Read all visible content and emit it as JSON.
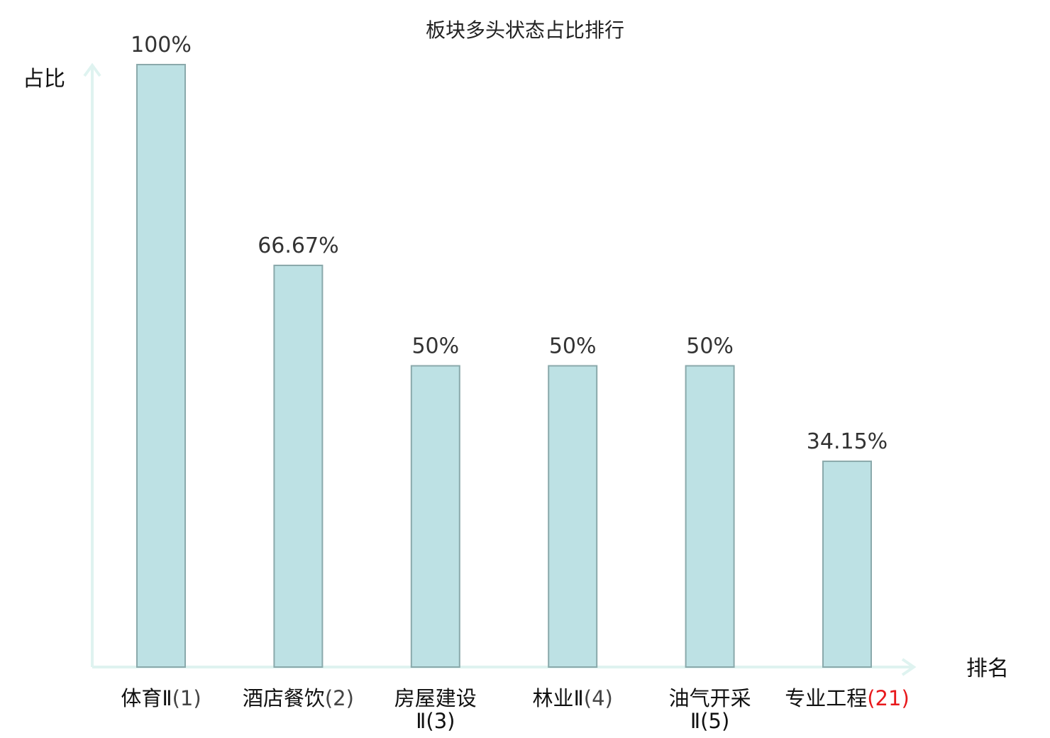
{
  "chart_data": {
    "type": "bar",
    "title": "板块多头状态占比排行",
    "ylabel": "占比",
    "xlabel": "排名",
    "ylim": [
      0,
      100
    ],
    "grid": false,
    "value_unit": "%",
    "categories": [
      {
        "name": "体育Ⅱ",
        "rank": "(1)",
        "highlight": false
      },
      {
        "name": "酒店餐饮",
        "rank": "(2)",
        "highlight": false
      },
      {
        "name": "房屋建设",
        "name_line2": "Ⅱ",
        "rank": "(3)",
        "highlight": false
      },
      {
        "name": "林业Ⅱ",
        "rank": "(4)",
        "highlight": false
      },
      {
        "name": "油气开采",
        "name_line2": "Ⅱ",
        "rank": "(5)",
        "highlight": false
      },
      {
        "name": "专业工程",
        "rank": "(21)",
        "highlight": true
      }
    ],
    "values": [
      100,
      66.67,
      50,
      50,
      50,
      34.15
    ],
    "value_labels": [
      "100%",
      "66.67%",
      "50%",
      "50%",
      "50%",
      "34.15%"
    ]
  },
  "colors": {
    "bar_fill": "#bde1e4",
    "bar_stroke": "#8aa9ab",
    "axis": "#dff3f0",
    "label_text": "#111111",
    "rank_text": "#444444",
    "highlight": "#e8191c"
  }
}
